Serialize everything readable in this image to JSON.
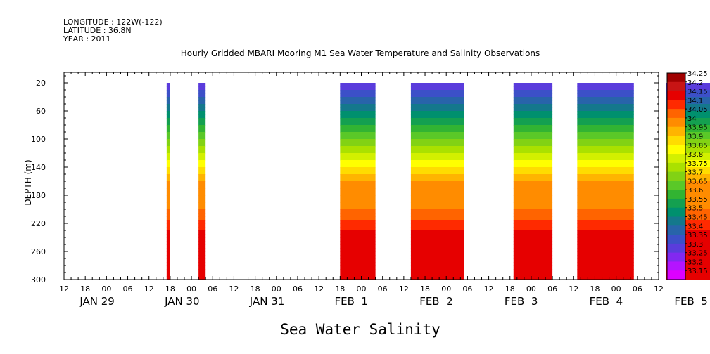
{
  "header": {
    "longitude": "LONGITUDE : 122W(-122)",
    "latitude": "LATITUDE : 36.8N",
    "year": "YEAR : 2011"
  },
  "chart_data": {
    "type": "heatmap",
    "title": "Hourly Gridded MBARI Mooring M1 Sea Water Temperature and Salinity Observations",
    "xlabel": "Sea Water Salinity",
    "ylabel": "DEPTH (m)",
    "y_ticks": [
      20,
      60,
      100,
      140,
      180,
      220,
      260,
      300
    ],
    "ylim": [
      300,
      20
    ],
    "y_inverted": true,
    "x_hour_labels": [
      "12",
      "18",
      "00",
      "06",
      "12",
      "18",
      "00",
      "06",
      "12",
      "18",
      "00",
      "06",
      "12",
      "18",
      "00",
      "06",
      "12",
      "18",
      "00",
      "06",
      "12",
      "18",
      "00",
      "06",
      "12",
      "18",
      "00",
      "06",
      "12"
    ],
    "x_day_labels": [
      "JAN 29",
      "JAN 30",
      "JAN 31",
      "FEB  1",
      "FEB  2",
      "FEB  3",
      "FEB  4",
      "FEB  5"
    ],
    "x_start_hours_before_jan29": 12,
    "x_hours_total": 168,
    "colorbar_levels": [
      "34.25",
      "34.2",
      "34.15",
      "34.1",
      "34.05",
      "34",
      "33.95",
      "33.9",
      "33.85",
      "33.8",
      "33.75",
      "33.7",
      "33.65",
      "33.6",
      "33.55",
      "33.5",
      "33.45",
      "33.4",
      "33.35",
      "33.3",
      "33.25",
      "33.2",
      "33.15"
    ],
    "colorbar_colors": [
      "#a00000",
      "#c81414",
      "#e60000",
      "#ff2a00",
      "#ff6400",
      "#ff8c00",
      "#ffb400",
      "#ffdc00",
      "#ffff00",
      "#d2f000",
      "#aae100",
      "#82d214",
      "#5ac828",
      "#32b432",
      "#14a050",
      "#00906e",
      "#14788c",
      "#2864aa",
      "#3c50c8",
      "#5a3cdc",
      "#8228f0",
      "#b414ff",
      "#dc00ff"
    ],
    "data_segments": [
      {
        "start": "JAN 29 17:00",
        "end": "JAN 29 18:00"
      },
      {
        "start": "JAN 30 02:00",
        "end": "JAN 30 04:00"
      },
      {
        "start": "JAN 31 18:00",
        "end": "FEB 1 04:00"
      },
      {
        "start": "FEB 1 14:00",
        "end": "FEB 2 05:00"
      },
      {
        "start": "FEB 2 19:00",
        "end": "FEB 3 06:00"
      },
      {
        "start": "FEB 3 13:00",
        "end": "FEB 4 05:00"
      },
      {
        "start": "FEB 4 14:00",
        "end": "FEB 5 07:00"
      }
    ],
    "profile": [
      {
        "depth": 20,
        "value": 33.3
      },
      {
        "depth": 40,
        "value": 33.4
      },
      {
        "depth": 60,
        "value": 33.5
      },
      {
        "depth": 80,
        "value": 33.6
      },
      {
        "depth": 100,
        "value": 33.7
      },
      {
        "depth": 120,
        "value": 33.8
      },
      {
        "depth": 140,
        "value": 33.9
      },
      {
        "depth": 160,
        "value": 34.0
      },
      {
        "depth": 200,
        "value": 34.05
      },
      {
        "depth": 230,
        "value": 34.15
      },
      {
        "depth": 260,
        "value": 34.2
      },
      {
        "depth": 280,
        "value": 34.15
      },
      {
        "depth": 300,
        "value": 34.15
      }
    ]
  }
}
